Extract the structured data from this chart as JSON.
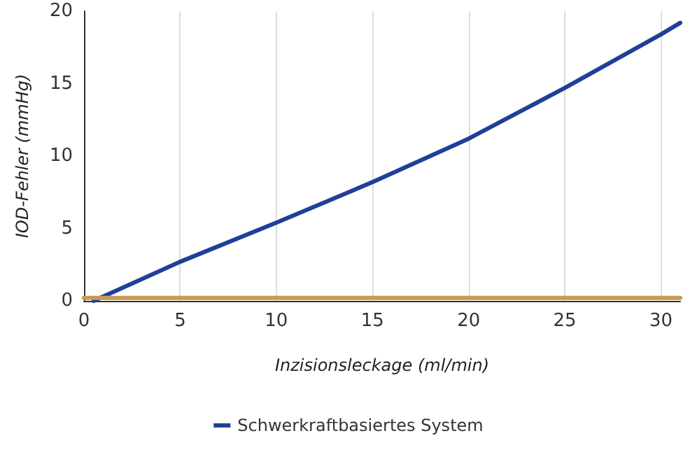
{
  "chart_data": {
    "type": "line",
    "xlabel": "Inzisionsleckage (ml/min)",
    "ylabel": "IOD-Fehler (mmHg)",
    "xlim": [
      0,
      31
    ],
    "xticks": [
      0,
      5,
      10,
      15,
      20,
      25,
      30
    ],
    "ylim": [
      0,
      20
    ],
    "yticks": [
      0,
      5,
      10,
      15,
      20
    ],
    "grid": "x",
    "legend": "bottom",
    "marker": "none",
    "line_style": "solid",
    "series": [
      {
        "name": "Schwerkraftbasiertes System",
        "color": "#1f3f99",
        "x": [
          0.5,
          5,
          10,
          15,
          20,
          25,
          30,
          31
        ],
        "values": [
          0,
          2.7,
          5.4,
          8.2,
          11.2,
          14.7,
          18.4,
          19.2
        ]
      },
      {
        "color": "#c49a56",
        "x": [
          0,
          31
        ],
        "values": [
          0.2,
          0.2
        ]
      }
    ]
  }
}
